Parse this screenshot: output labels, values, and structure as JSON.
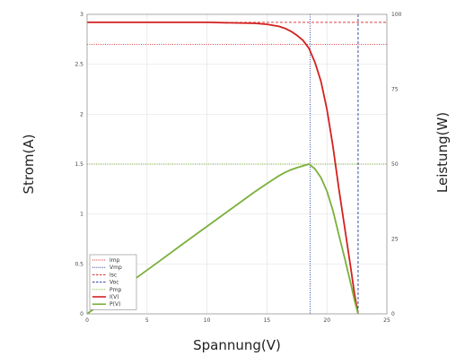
{
  "chart_data": {
    "type": "line",
    "xlabel": "Spannung(V)",
    "ylabel_left": "Strom(A)",
    "ylabel_right": "Leistung(W)",
    "xlim": [
      0,
      25
    ],
    "ylim_left": [
      0,
      3
    ],
    "ylim_right": [
      0,
      100
    ],
    "grid": true,
    "legend_position": "bottom-left",
    "x_ticks": [
      "0",
      "5",
      "10",
      "15",
      "20",
      "25"
    ],
    "y_left_ticks": [
      "0",
      "0.5",
      "1",
      "1.5",
      "2",
      "2.5",
      "3"
    ],
    "y_right_ticks": [
      "0",
      "25",
      "50",
      "75",
      "100"
    ],
    "reference_lines": {
      "Imp": {
        "value": 2.7,
        "axis": "y_left"
      },
      "Vmp": {
        "value": 18.6,
        "axis": "x"
      },
      "Isc": {
        "value": 2.92,
        "axis": "y_left"
      },
      "Voc": {
        "value": 22.6,
        "axis": "x"
      },
      "Pmp": {
        "value": 50,
        "axis": "y_right"
      }
    },
    "series": [
      {
        "name": "I(V)",
        "axis": "left",
        "color": "#d42020",
        "x": [
          0,
          5,
          10,
          14,
          15,
          16,
          16.5,
          17,
          17.5,
          18,
          18.5,
          19,
          19.5,
          20,
          20.5,
          21,
          21.5,
          22,
          22.3,
          22.6
        ],
        "y": [
          2.92,
          2.92,
          2.92,
          2.91,
          2.9,
          2.88,
          2.86,
          2.83,
          2.79,
          2.74,
          2.66,
          2.52,
          2.33,
          2.05,
          1.68,
          1.25,
          0.85,
          0.45,
          0.2,
          0
        ]
      },
      {
        "name": "P(V)",
        "axis": "right",
        "color": "#7ab03a",
        "x": [
          0,
          2,
          4,
          6,
          8,
          10,
          12,
          14,
          15,
          16,
          16.5,
          17,
          17.5,
          18,
          18.5,
          19,
          19.5,
          20,
          20.5,
          21,
          21.5,
          22,
          22.3,
          22.6
        ],
        "y": [
          0,
          5.8,
          11.7,
          17.5,
          23.4,
          29.2,
          35,
          40.8,
          43.5,
          46.1,
          47.2,
          48.1,
          48.8,
          49.4,
          50,
          48.4,
          45.5,
          41,
          34.5,
          26.3,
          18.3,
          9.9,
          4.5,
          0
        ]
      }
    ],
    "legend": [
      {
        "label": "Imp",
        "color": "#d42020",
        "style": "dotted"
      },
      {
        "label": "Vmp",
        "color": "#2a3a9a",
        "style": "dotted"
      },
      {
        "label": "Isc",
        "color": "#d42020",
        "style": "dashed"
      },
      {
        "label": "Voc",
        "color": "#2a3a9a",
        "style": "dashed"
      },
      {
        "label": "Pmp",
        "color": "#7ab03a",
        "style": "dotted"
      },
      {
        "label": "I(V)",
        "color": "#d42020",
        "style": "solid"
      },
      {
        "label": "P(V)",
        "color": "#7ab03a",
        "style": "solid"
      }
    ]
  }
}
